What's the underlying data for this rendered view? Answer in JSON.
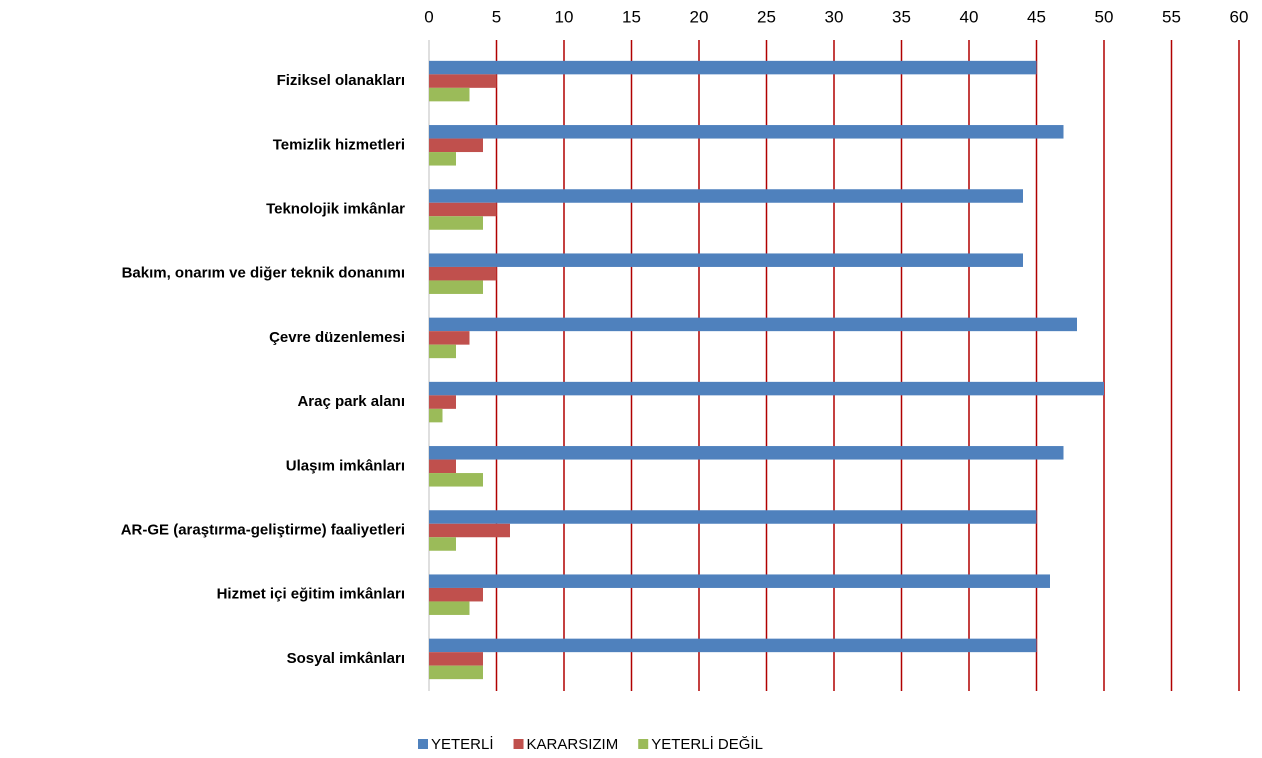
{
  "chart_data": {
    "type": "bar",
    "orientation": "horizontal",
    "categories": [
      "Fiziksel olanakları",
      "Temizlik hizmetleri",
      "Teknolojik imkânlar",
      "Bakım, onarım ve diğer teknik donanımı",
      "Çevre düzenlemesi",
      "Araç park alanı",
      "Ulaşım imkânları",
      "AR-GE (araştırma-geliştirme) faaliyetleri",
      "Hizmet içi eğitim imkânları",
      "Sosyal imkânları"
    ],
    "series": [
      {
        "name": "YETERLİ",
        "color": "#4f81bd",
        "values": [
          45,
          47,
          44,
          44,
          48,
          50,
          47,
          45,
          46,
          45
        ]
      },
      {
        "name": "KARARSIZIM",
        "color": "#c0504d",
        "values": [
          5,
          4,
          5,
          5,
          3,
          2,
          2,
          6,
          4,
          4
        ]
      },
      {
        "name": "YETERLİ DEĞİL",
        "color": "#9bbb59",
        "values": [
          3,
          2,
          4,
          4,
          2,
          1,
          4,
          2,
          3,
          4
        ]
      }
    ],
    "xlim": [
      0,
      60
    ],
    "xticks": [
      0,
      5,
      10,
      15,
      20,
      25,
      30,
      35,
      40,
      45,
      50,
      55,
      60
    ],
    "grid": true,
    "grid_color": "#b00000",
    "legend": "bottom"
  }
}
